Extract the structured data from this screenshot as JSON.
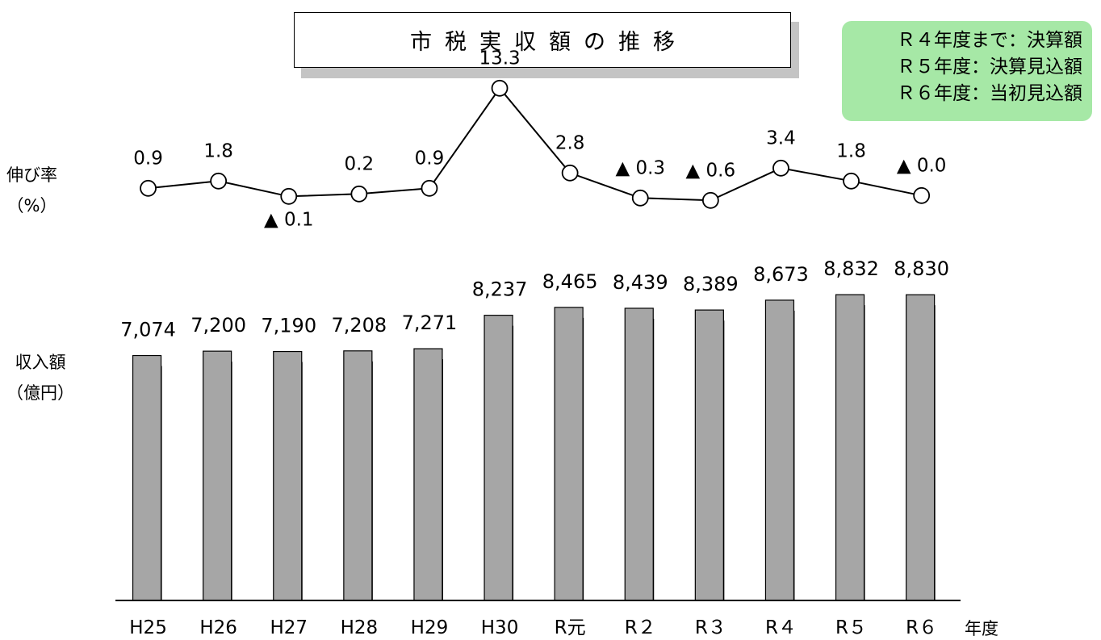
{
  "title": "市税実収額の推移",
  "note": {
    "lines": [
      "Ｒ４年度まで：決算額",
      "Ｒ５年度：決算見込額",
      "Ｒ６年度：当初見込額"
    ],
    "bg_color": "#a6e8a6"
  },
  "labels": {
    "growth_axis": [
      "伸び率",
      "（%）"
    ],
    "amount_axis": [
      "収入額",
      "（億円）"
    ],
    "x_unit": "年度"
  },
  "colors": {
    "bar_front": "#a6a6a6",
    "bar_shadow": "#000000",
    "line": "#000000"
  },
  "chart_data": {
    "type": "bar+line",
    "categories": [
      "H25",
      "H26",
      "H27",
      "H28",
      "H29",
      "H30",
      "R元",
      "R２",
      "R３",
      "R４",
      "R５",
      "R６"
    ],
    "series": [
      {
        "kind": "bar",
        "unit": "億円",
        "values": [
          7074,
          7200,
          7190,
          7208,
          7271,
          8237,
          8465,
          8439,
          8389,
          8673,
          8832,
          8830
        ],
        "value_labels": [
          "7,074",
          "7,200",
          "7,190",
          "7,208",
          "7,271",
          "8,237",
          "8,465",
          "8,439",
          "8,389",
          "8,673",
          "8,832",
          "8,830"
        ]
      },
      {
        "kind": "line",
        "unit": "%",
        "values": [
          0.9,
          1.8,
          -0.1,
          0.2,
          0.9,
          13.3,
          2.8,
          -0.3,
          -0.6,
          3.4,
          1.8,
          0.0
        ],
        "value_labels": [
          "0.9",
          "1.8",
          "▲ 0.1",
          "0.2",
          "0.9",
          "13.3",
          "2.8",
          "▲ 0.3",
          "▲ 0.6",
          "3.4",
          "1.8",
          "▲ 0.0"
        ]
      }
    ]
  }
}
